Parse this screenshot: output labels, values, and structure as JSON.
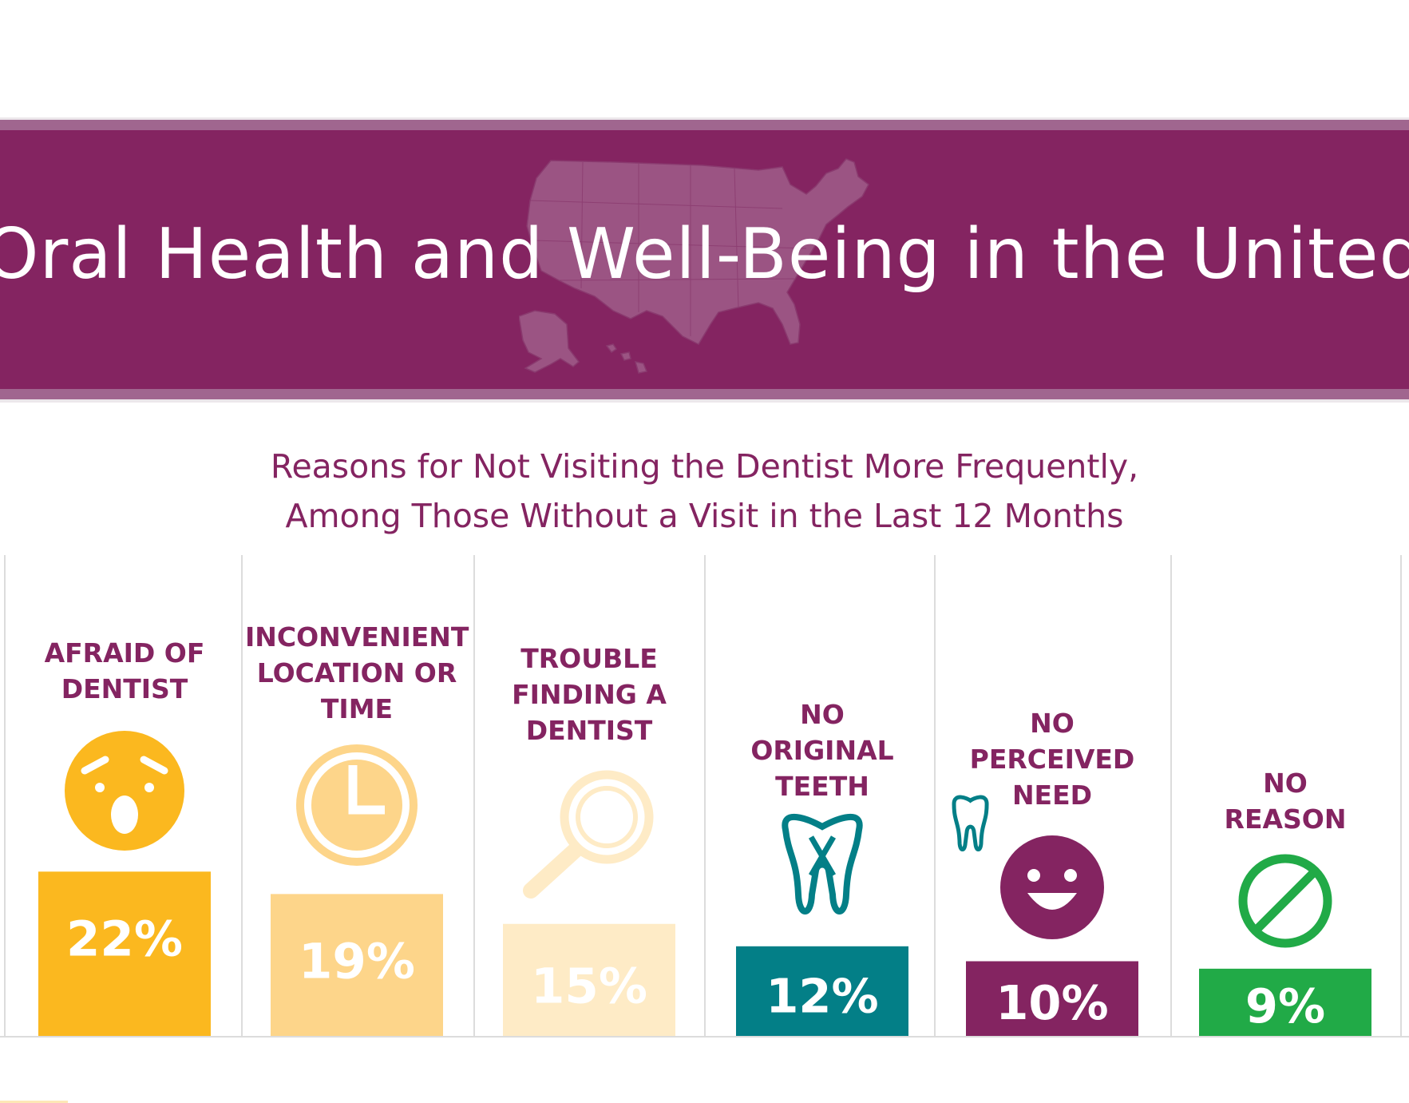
{
  "header": {
    "title": "Oral Health and Well-Being in the United States"
  },
  "chart_data": {
    "type": "bar",
    "title": "Reasons for Not Visiting the Dentist More Frequently,",
    "subtitle": "Among Those Without a Visit in the Last 12 Months",
    "xlabel": "",
    "ylabel": "",
    "categories": [
      [
        "AFRAID OF",
        "DENTIST"
      ],
      [
        "INCONVENIENT",
        "LOCATION OR",
        "TIME"
      ],
      [
        "TROUBLE",
        "FINDING A",
        "DENTIST"
      ],
      [
        "NO",
        "ORIGINAL",
        "TEETH"
      ],
      [
        "NO",
        "PERCEIVED",
        "NEED"
      ],
      [
        "NO",
        "REASON"
      ]
    ],
    "values": [
      22,
      19,
      15,
      12,
      10,
      9
    ],
    "value_labels": [
      "22%",
      "19%",
      "15%",
      "12%",
      "10%",
      "9%"
    ],
    "colors": [
      "#fbb81f",
      "#fdd58a",
      "#feebc6",
      "#037f87",
      "#842461",
      "#21aa47"
    ],
    "icons": [
      "shocked-face-icon",
      "clock-icon",
      "magnifier-icon",
      "missing-tooth-icon",
      "smiling-face-icon",
      "prohibited-icon"
    ],
    "grid": false,
    "legend": "none"
  },
  "colors": {
    "brand_purple": "#842461",
    "banner_light": "#a0668f",
    "grid_line": "#dcdcdc"
  }
}
